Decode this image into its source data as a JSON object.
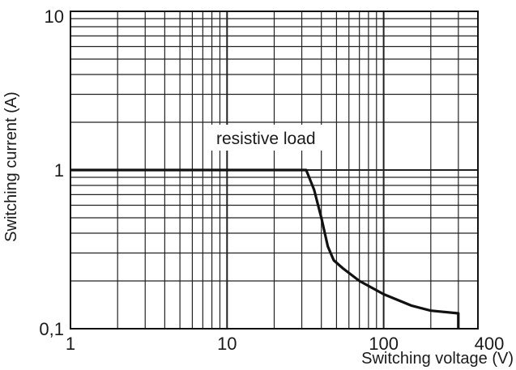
{
  "chart_data": {
    "type": "line",
    "xlabel": "Switching voltage (V)",
    "ylabel": "Switching current (A)",
    "x_scale": "log",
    "y_scale": "log",
    "xlim": [
      1,
      400
    ],
    "ylim": [
      0.1,
      10
    ],
    "grid": true,
    "x_tick_labels": [
      "1",
      "10",
      "100",
      "400"
    ],
    "y_tick_labels": [
      "0,1",
      "1",
      "10"
    ],
    "annotations": [
      "resistive load"
    ],
    "series": [
      {
        "x": [
          1,
          30,
          32,
          36,
          40,
          44,
          48,
          55,
          70,
          100,
          150,
          200,
          300,
          300
        ],
        "y": [
          1,
          1,
          1,
          0.75,
          0.5,
          0.33,
          0.27,
          0.24,
          0.2,
          0.165,
          0.14,
          0.13,
          0.125,
          0.1
        ]
      }
    ],
    "colors": {
      "line": "#111111",
      "grid": "#222222"
    }
  }
}
